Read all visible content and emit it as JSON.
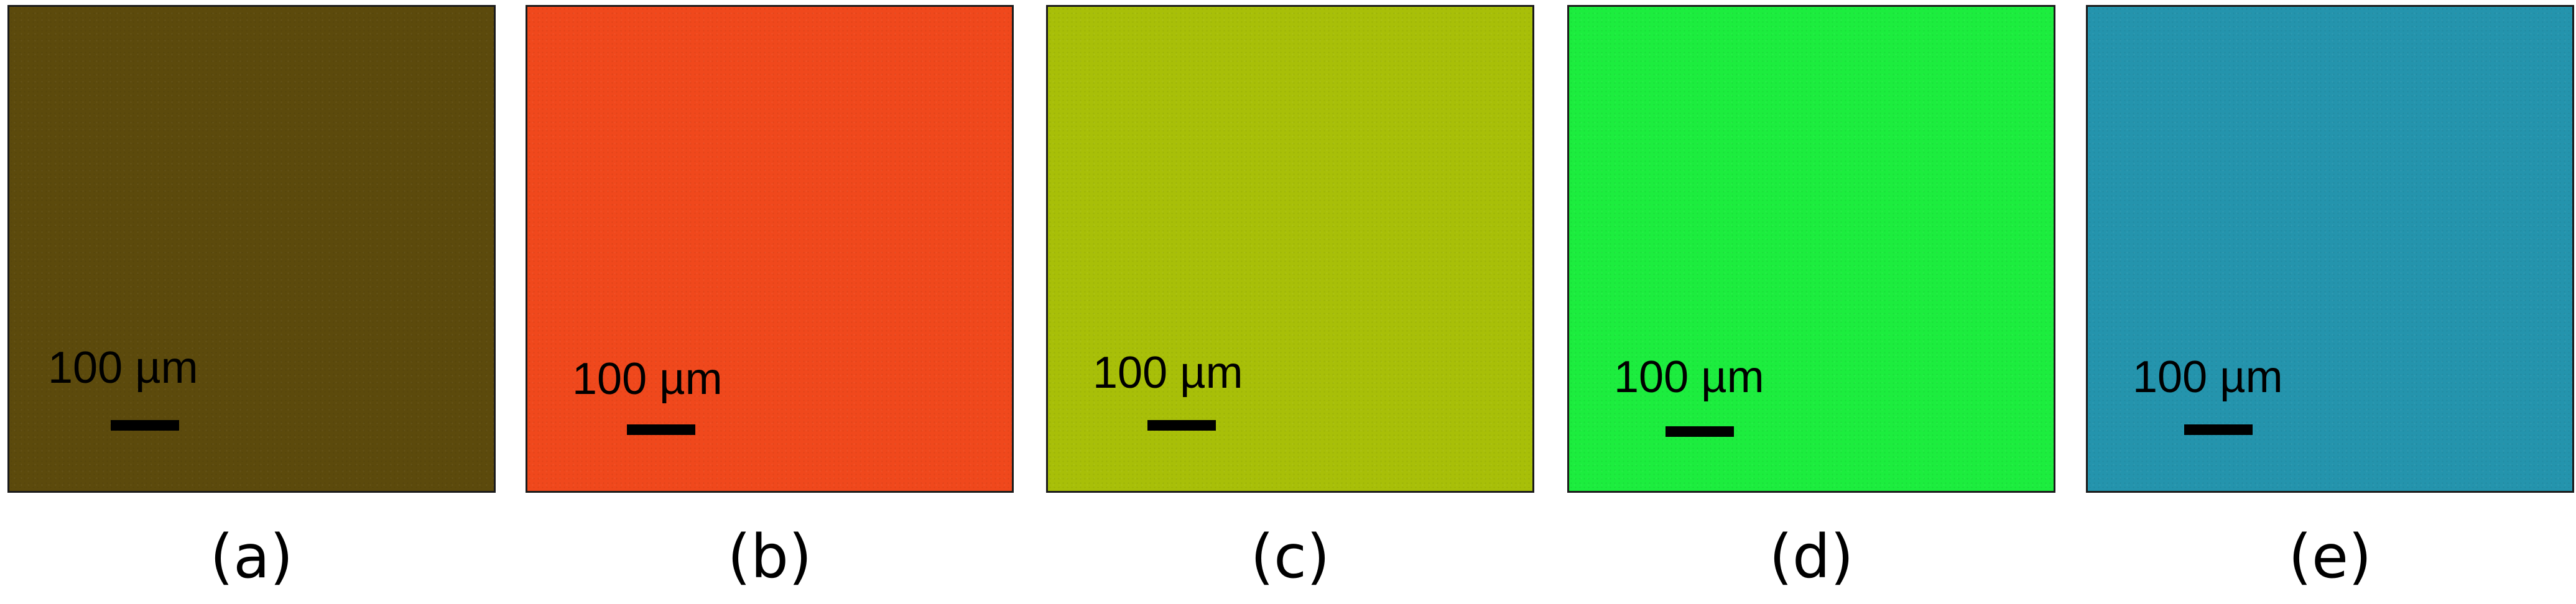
{
  "panels": [
    {
      "color": "#5c4a0c",
      "scale_label": "100 µm",
      "caption": "(a)"
    },
    {
      "color": "#f0481c",
      "scale_label": "100 µm",
      "caption": "(b)"
    },
    {
      "color": "#a8bf08",
      "scale_label": "100 µm",
      "caption": "(c)"
    },
    {
      "color": "#1ced3e",
      "scale_label": "100 µm",
      "caption": "(d)"
    },
    {
      "color": "#2494ad",
      "scale_label": "100 µm",
      "caption": "(e)"
    }
  ]
}
